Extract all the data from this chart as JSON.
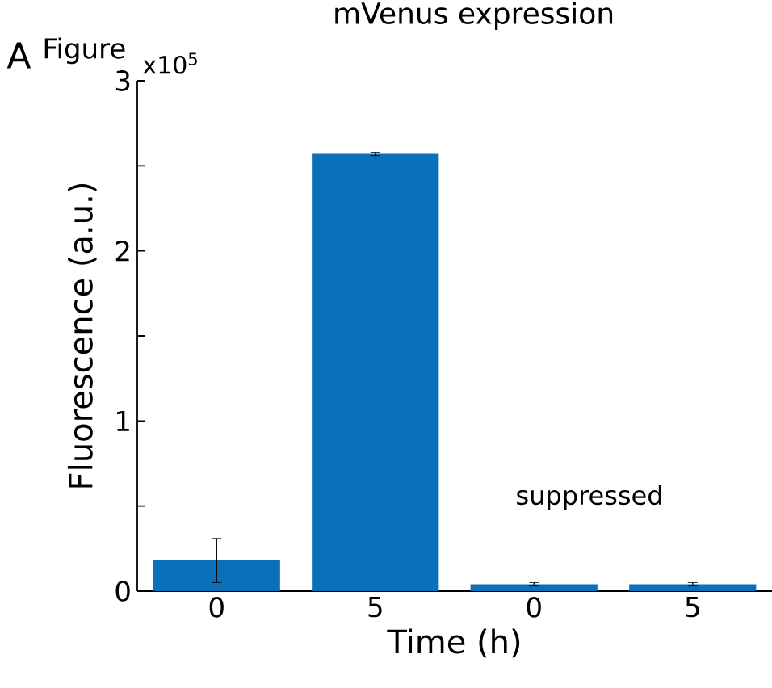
{
  "chart_data": {
    "type": "bar",
    "title": "mVenus expression",
    "xlabel": "Time (h)",
    "ylabel": "Fluorescence (a.u.)",
    "categories": [
      "0",
      "5",
      "0",
      "5"
    ],
    "values": [
      0.18,
      2.57,
      0.04,
      0.04
    ],
    "errors": [
      0.13,
      0.01,
      0.01,
      0.01
    ],
    "color": "#0a70b9",
    "ylim": [
      0,
      3
    ],
    "yticks": [
      0,
      {
        "value": 0.5,
        "label": null
      },
      1,
      {
        "value": 1.5,
        "label": null
      },
      2,
      {
        "value": 2.5,
        "label": null
      },
      3
    ],
    "annotations": [
      "A",
      "Figure",
      "x10$^{5}$",
      "suppressed"
    ]
  }
}
